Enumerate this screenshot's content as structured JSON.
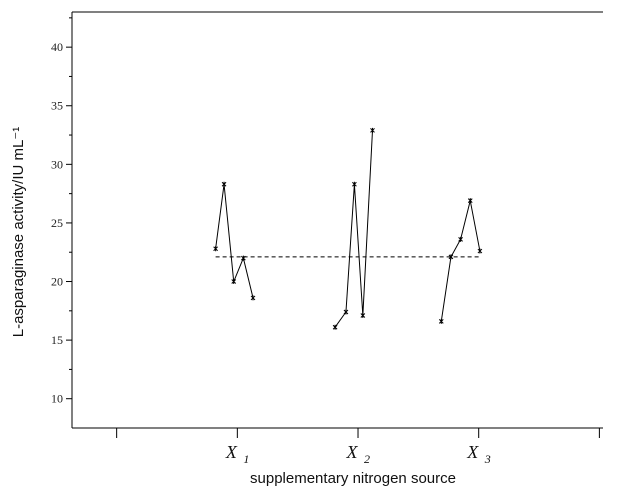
{
  "chart_data": {
    "type": "line",
    "title": "",
    "xlabel": "supplementary nitrogen source",
    "ylabel": "L-asparaginase activity/IU mL⁻¹",
    "ylim": [
      7.5,
      43
    ],
    "yticks": [
      10,
      15,
      20,
      25,
      30,
      35,
      40
    ],
    "grid": false,
    "legend": "none",
    "categories": [
      "X",
      "X",
      "X"
    ],
    "category_subscripts": [
      "1",
      "2",
      "3"
    ],
    "reference_line": {
      "y": 22.1,
      "style": "dashed"
    },
    "series": [
      {
        "group": "X1",
        "points": [
          {
            "x": 0.82,
            "y": 22.8
          },
          {
            "x": 0.89,
            "y": 28.3
          },
          {
            "x": 0.97,
            "y": 20.0
          },
          {
            "x": 1.05,
            "y": 22.0
          },
          {
            "x": 1.13,
            "y": 18.6
          }
        ]
      },
      {
        "group": "X2",
        "points": [
          {
            "x": 1.81,
            "y": 16.1
          },
          {
            "x": 1.9,
            "y": 17.4
          },
          {
            "x": 1.97,
            "y": 28.3
          },
          {
            "x": 2.04,
            "y": 17.1
          },
          {
            "x": 2.12,
            "y": 32.9
          }
        ]
      },
      {
        "group": "X3",
        "points": [
          {
            "x": 2.69,
            "y": 16.6
          },
          {
            "x": 2.77,
            "y": 22.1
          },
          {
            "x": 2.85,
            "y": 23.6
          },
          {
            "x": 2.93,
            "y": 26.9
          },
          {
            "x": 3.01,
            "y": 22.6
          }
        ]
      }
    ]
  }
}
